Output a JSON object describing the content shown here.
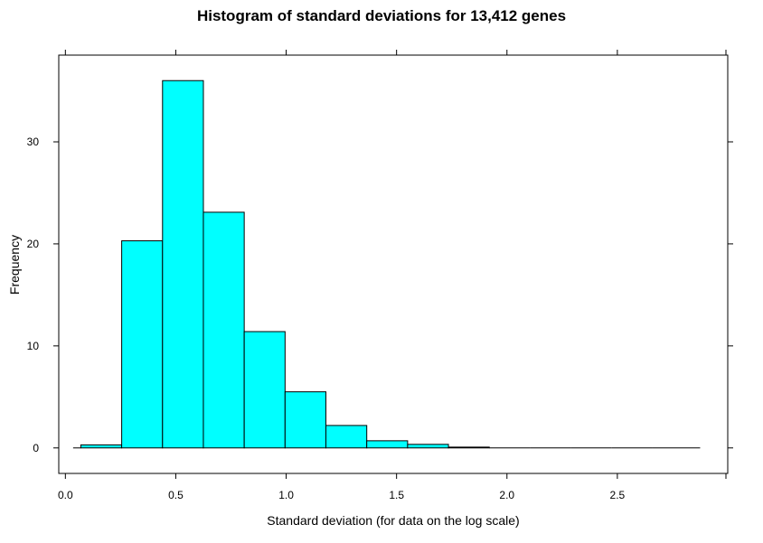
{
  "chart_data": {
    "type": "bar",
    "title": "Histogram of standard deviations for 13,412 genes",
    "xlabel": "Standard deviation (for data on the log scale)",
    "ylabel": "Frequency",
    "xlim": [
      -0.03,
      3.0
    ],
    "ylim": [
      -2.5,
      38.5
    ],
    "xticks": [
      0.0,
      0.5,
      1.0,
      1.5,
      2.0,
      2.5
    ],
    "xtick_labels": [
      "0.0",
      "0.5",
      "1.0",
      "1.5",
      "2.0",
      "2.5"
    ],
    "yticks": [
      0,
      10,
      20,
      30
    ],
    "ytick_labels": [
      "0",
      "10",
      "20",
      "30"
    ],
    "bins": [
      {
        "x0": 0.035,
        "x1": 0.07,
        "value": 0.0
      },
      {
        "x0": 0.07,
        "x1": 0.255,
        "value": 0.3
      },
      {
        "x0": 0.255,
        "x1": 0.44,
        "value": 20.3
      },
      {
        "x0": 0.44,
        "x1": 0.625,
        "value": 36.0
      },
      {
        "x0": 0.625,
        "x1": 0.81,
        "value": 23.1
      },
      {
        "x0": 0.81,
        "x1": 0.995,
        "value": 11.4
      },
      {
        "x0": 0.995,
        "x1": 1.18,
        "value": 5.5
      },
      {
        "x0": 1.18,
        "x1": 1.365,
        "value": 2.2
      },
      {
        "x0": 1.365,
        "x1": 1.55,
        "value": 0.7
      },
      {
        "x0": 1.55,
        "x1": 1.735,
        "value": 0.35
      },
      {
        "x0": 1.735,
        "x1": 1.92,
        "value": 0.08
      },
      {
        "x0": 1.92,
        "x1": 2.105,
        "value": 0.0
      },
      {
        "x0": 2.105,
        "x1": 2.29,
        "value": 0.0
      },
      {
        "x0": 2.29,
        "x1": 2.475,
        "value": 0.0
      },
      {
        "x0": 2.475,
        "x1": 2.66,
        "value": 0.0
      },
      {
        "x0": 2.66,
        "x1": 2.875,
        "value": 0.0
      }
    ],
    "bar_color": "#00ffff",
    "edge_color": "#000000",
    "grid": false
  }
}
